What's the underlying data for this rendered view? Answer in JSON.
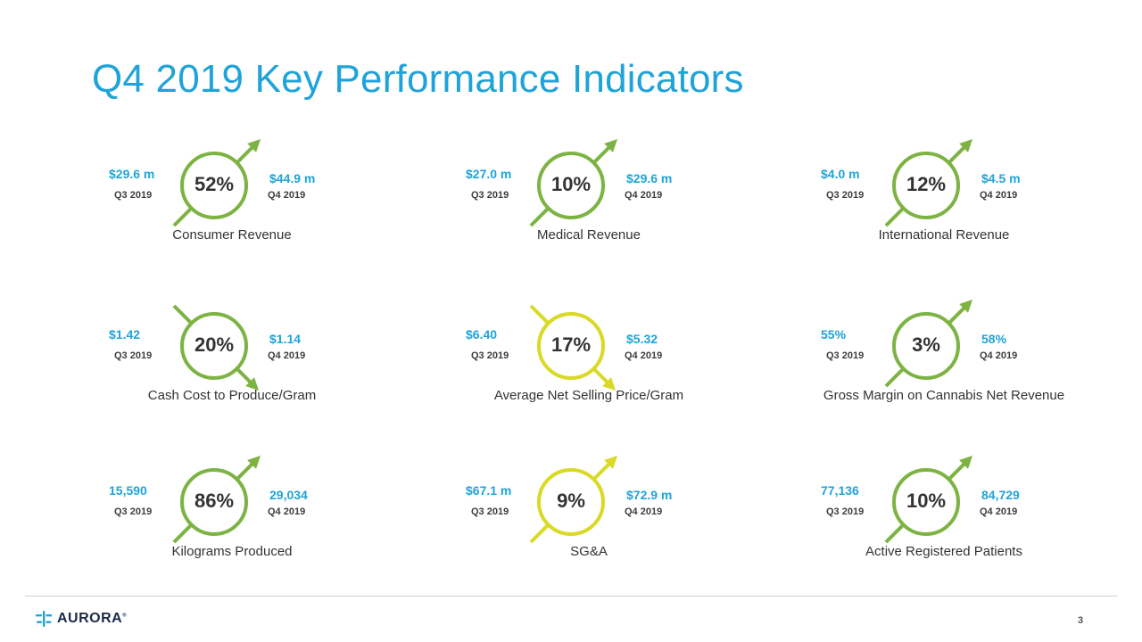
{
  "title": "Q4 2019 Key Performance Indicators",
  "colors": {
    "green": "#7cb342",
    "yellow": "#d9d926",
    "blue": "#1fa3d8",
    "dark": "#333333"
  },
  "kpis": [
    {
      "q3_value": "$29.6 m",
      "q3_label": "Q3 2019",
      "q4_value": "$44.9 m",
      "q4_label": "Q4 2019",
      "pct": "52%",
      "label": "Consumer Revenue",
      "direction": "up",
      "color": "green"
    },
    {
      "q3_value": "$27.0 m",
      "q3_label": "Q3 2019",
      "q4_value": "$29.6 m",
      "q4_label": "Q4 2019",
      "pct": "10%",
      "label": "Medical Revenue",
      "direction": "up",
      "color": "green"
    },
    {
      "q3_value": "$4.0 m",
      "q3_label": "Q3 2019",
      "q4_value": "$4.5 m",
      "q4_label": "Q4 2019",
      "pct": "12%",
      "label": "International Revenue",
      "direction": "up",
      "color": "green"
    },
    {
      "q3_value": "$1.42",
      "q3_label": "Q3 2019",
      "q4_value": "$1.14",
      "q4_label": "Q4 2019",
      "pct": "20%",
      "label": "Cash Cost to Produce/Gram",
      "direction": "down",
      "color": "green"
    },
    {
      "q3_value": "$6.40",
      "q3_label": "Q3 2019",
      "q4_value": "$5.32",
      "q4_label": "Q4 2019",
      "pct": "17%",
      "label": "Average Net Selling Price/Gram",
      "direction": "down",
      "color": "yellow"
    },
    {
      "q3_value": "55%",
      "q3_label": "Q3 2019",
      "q4_value": "58%",
      "q4_label": "Q4 2019",
      "pct": "3%",
      "label": "Gross Margin on Cannabis Net Revenue",
      "direction": "up",
      "color": "green"
    },
    {
      "q3_value": "15,590",
      "q3_label": "Q3 2019",
      "q4_value": "29,034",
      "q4_label": "Q4 2019",
      "pct": "86%",
      "label": "Kilograms Produced",
      "direction": "up",
      "color": "green"
    },
    {
      "q3_value": "$67.1 m",
      "q3_label": "Q3 2019",
      "q4_value": "$72.9 m",
      "q4_label": "Q4 2019",
      "pct": "9%",
      "label": "SG&A",
      "direction": "up",
      "color": "yellow"
    },
    {
      "q3_value": "77,136",
      "q3_label": "Q3 2019",
      "q4_value": "84,729",
      "q4_label": "Q4 2019",
      "pct": "10%",
      "label": "Active Registered Patients",
      "direction": "up",
      "color": "green"
    }
  ],
  "footer": {
    "logo_text": "AURORA",
    "logo_reg": "®",
    "page_number": "3"
  }
}
